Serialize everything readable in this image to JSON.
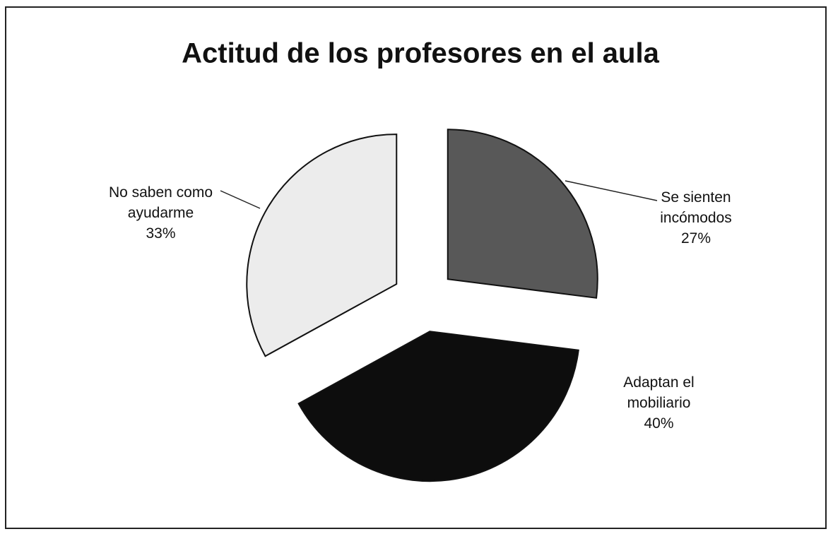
{
  "chart_data": {
    "type": "pie",
    "title": "Actitud de los profesores en el aula",
    "categories": [
      "Se sienten incómodos",
      "Adaptan el mobiliario",
      "No saben como ayudarme"
    ],
    "values": [
      27,
      40,
      33
    ],
    "value_labels": [
      "27%",
      "40%",
      "33%"
    ],
    "colors": [
      "#585858",
      "#0d0d0d",
      "#ececec"
    ]
  }
}
